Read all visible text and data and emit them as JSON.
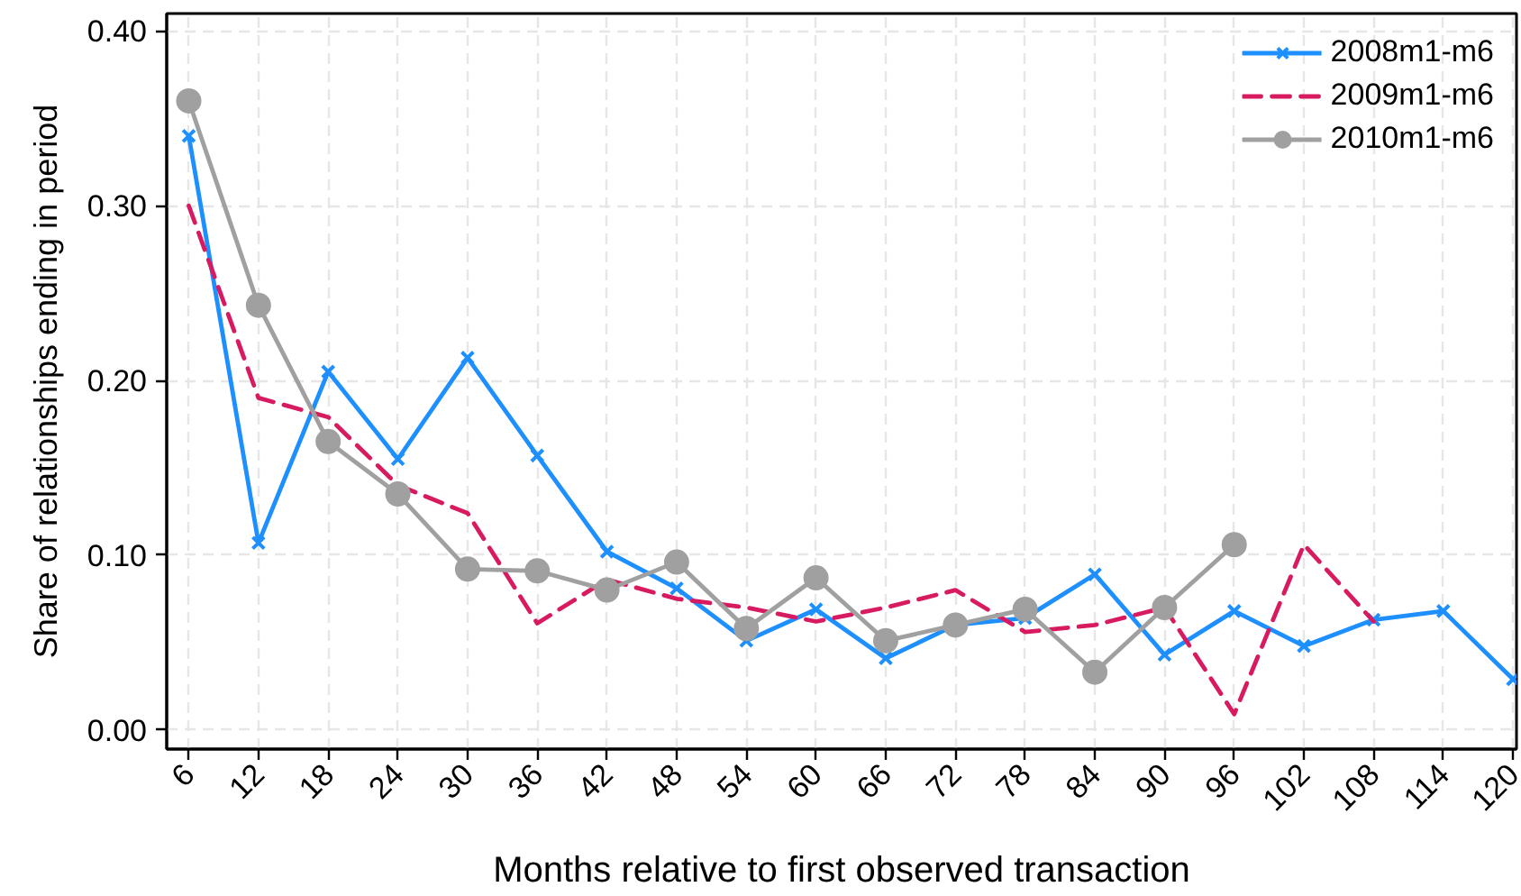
{
  "chart_data": {
    "type": "line",
    "xlabel": "Months relative to first observed transaction",
    "ylabel": "Share of relationships ending in period",
    "x": [
      6,
      12,
      18,
      24,
      30,
      36,
      42,
      48,
      54,
      60,
      66,
      72,
      78,
      84,
      90,
      96,
      102,
      108,
      114,
      120
    ],
    "xlim": [
      4.1,
      120.3
    ],
    "ylim": [
      -0.011,
      0.41
    ],
    "xticks": [
      6,
      12,
      18,
      24,
      30,
      36,
      42,
      48,
      54,
      60,
      66,
      72,
      78,
      84,
      90,
      96,
      102,
      108,
      114,
      120
    ],
    "yticks": [
      {
        "value": 0,
        "label": "0.00"
      },
      {
        "value": 0.1,
        "label": "0.10"
      },
      {
        "value": 0.2,
        "label": "0.20"
      },
      {
        "value": 0.3,
        "label": "0.30"
      },
      {
        "value": 0.4,
        "label": "0.40"
      }
    ],
    "grid": true,
    "legend": "top right",
    "series": [
      {
        "name": "2008m1-m6",
        "color": "#1e8fff",
        "marker": "cross",
        "line_style": "solid",
        "values": [
          0.34,
          0.107,
          0.205,
          0.155,
          0.213,
          0.157,
          0.102,
          0.081,
          0.051,
          0.069,
          0.041,
          0.06,
          0.064,
          0.089,
          0.043,
          0.068,
          0.048,
          0.063,
          0.068,
          0.029
        ]
      },
      {
        "name": "2009m1-m6",
        "color": "#d81b60",
        "marker": "none",
        "line_style": "dashed",
        "values": [
          0.3,
          0.19,
          0.179,
          0.14,
          0.124,
          0.061,
          0.086,
          0.075,
          0.07,
          0.062,
          0.07,
          0.08,
          0.056,
          0.06,
          0.07,
          0.009,
          0.106,
          0.062,
          null,
          null
        ]
      },
      {
        "name": "2010m1-m6",
        "color": "#a0a0a0",
        "marker": "circle",
        "line_style": "solid",
        "values": [
          0.36,
          0.243,
          0.165,
          0.135,
          0.092,
          0.091,
          0.08,
          0.096,
          0.058,
          0.087,
          0.051,
          0.06,
          0.069,
          0.033,
          0.07,
          0.106,
          null,
          null,
          null,
          null
        ]
      }
    ]
  }
}
